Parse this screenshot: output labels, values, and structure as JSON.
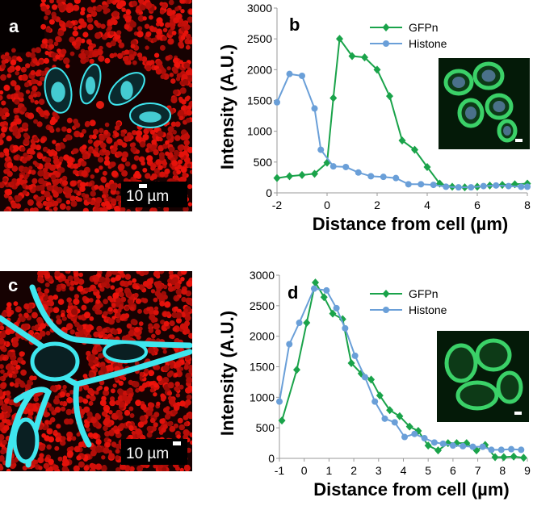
{
  "panels": {
    "a": {
      "letter": "a",
      "scale_label": "10 µm"
    },
    "b": {
      "letter": "b"
    },
    "c": {
      "letter": "c",
      "scale_label": "10 µm"
    },
    "d": {
      "letter": "d"
    }
  },
  "colors": {
    "gfpn": "#1aa34a",
    "histone": "#6a9fd8",
    "nuclei": "#d81c10",
    "cyan": "#3fe6ee",
    "insetGreen": "#3bd168"
  },
  "chart_data": [
    {
      "type": "line",
      "panel": "b",
      "xlabel": "Distance from cell (µm)",
      "ylabel": "Intensity (A.U.)",
      "xlim": [
        -2,
        8
      ],
      "ylim": [
        0,
        3000
      ],
      "xticks": [
        -2,
        0,
        2,
        4,
        6,
        8
      ],
      "yticks": [
        0,
        500,
        1000,
        1500,
        2000,
        2500,
        3000
      ],
      "legend_position": "top-right",
      "grid": false,
      "series": [
        {
          "name": "GFPn",
          "marker": "diamond",
          "x": [
            -2,
            -1.5,
            -1,
            -0.5,
            0,
            0.25,
            0.5,
            1,
            1.5,
            2,
            2.5,
            3,
            3.5,
            4,
            4.5,
            5,
            5.5,
            6,
            6.5,
            7,
            7.5,
            8
          ],
          "y": [
            240,
            270,
            290,
            310,
            490,
            1540,
            2500,
            2220,
            2200,
            2000,
            1570,
            850,
            700,
            420,
            150,
            100,
            90,
            100,
            120,
            130,
            140,
            150
          ]
        },
        {
          "name": "Histone",
          "marker": "circle",
          "x": [
            -2,
            -1.5,
            -1,
            -0.5,
            -0.25,
            0.25,
            0.75,
            1.25,
            1.75,
            2.25,
            2.75,
            3.25,
            3.75,
            4.25,
            4.75,
            5.25,
            5.75,
            6.25,
            6.75,
            7.25,
            7.75,
            8
          ],
          "y": [
            1470,
            1930,
            1900,
            1370,
            700,
            430,
            420,
            330,
            270,
            260,
            240,
            140,
            140,
            130,
            100,
            90,
            90,
            110,
            120,
            110,
            100,
            100
          ]
        }
      ]
    },
    {
      "type": "line",
      "panel": "d",
      "xlabel": "Distance from cell (µm)",
      "ylabel": "Intensity (A.U.)",
      "xlim": [
        -1,
        9
      ],
      "ylim": [
        0,
        3000
      ],
      "xticks": [
        -1,
        0,
        1,
        2,
        3,
        4,
        5,
        6,
        7,
        8,
        9
      ],
      "yticks": [
        0,
        500,
        1000,
        1500,
        2000,
        2500,
        3000
      ],
      "legend_position": "top-right",
      "grid": false,
      "series": [
        {
          "name": "GFPn",
          "marker": "diamond",
          "x": [
            -0.9,
            -0.3,
            0.1,
            0.45,
            0.8,
            1.15,
            1.55,
            1.9,
            2.3,
            2.7,
            3.05,
            3.45,
            3.85,
            4.25,
            4.6,
            5.0,
            5.4,
            5.8,
            6.15,
            6.55,
            6.95,
            7.3,
            7.7,
            8.05,
            8.45,
            8.85
          ],
          "y": [
            620,
            1450,
            2220,
            2880,
            2640,
            2370,
            2280,
            1560,
            1390,
            1290,
            1030,
            790,
            690,
            520,
            450,
            210,
            130,
            250,
            250,
            250,
            130,
            220,
            20,
            20,
            30,
            10
          ]
        },
        {
          "name": "Histone",
          "marker": "circle",
          "x": [
            -1,
            -0.6,
            -0.2,
            0.4,
            0.9,
            1.3,
            1.65,
            2.05,
            2.45,
            2.85,
            3.25,
            3.65,
            4.05,
            4.45,
            4.85,
            5.25,
            5.6,
            6.0,
            6.4,
            6.8,
            7.2,
            7.55,
            7.95,
            8.35,
            8.75
          ],
          "y": [
            930,
            1870,
            2220,
            2780,
            2750,
            2460,
            2130,
            1680,
            1330,
            930,
            650,
            590,
            350,
            400,
            330,
            260,
            240,
            210,
            200,
            190,
            190,
            140,
            140,
            150,
            140
          ]
        }
      ]
    }
  ]
}
